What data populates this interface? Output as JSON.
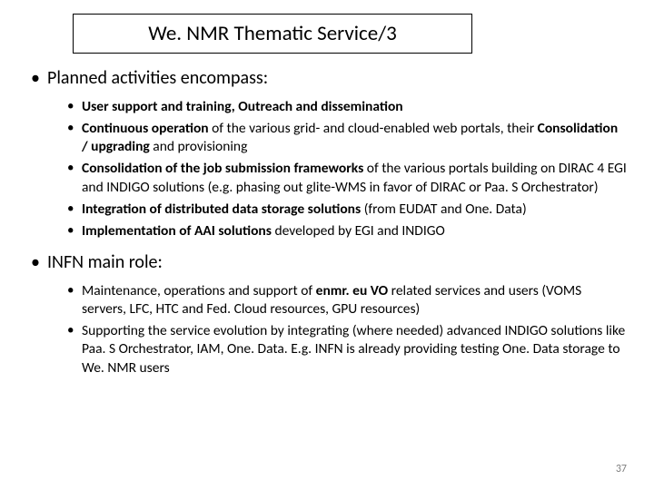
{
  "title": "We. NMR Thematic Service/3",
  "pageNumber": "37",
  "colors": {
    "background": "#ffffff",
    "text": "#000000",
    "border": "#000000",
    "pageNum": "#7f7f7f"
  },
  "section1": {
    "heading": "Planned activities encompass:",
    "items": {
      "i0": {
        "t0": "User support and training, Outreach and dissemination"
      },
      "i1": {
        "t0": "Continuous operation",
        "t1": " of the various grid- and cloud-enabled web portals, their ",
        "t2": "Consolidation / upgrading ",
        "t3": " and provisioning"
      },
      "i2": {
        "t0": "Consolidation of the job submission frameworks",
        "t1": " of the various portals building on DIRAC 4 EGI and INDIGO  solutions (e.g. phasing out glite-WMS in favor of DIRAC or Paa. S Orchestrator)"
      },
      "i3": {
        "t0": "Integration of distributed data storage solutions",
        "t1": " (from EUDAT and One. Data)"
      },
      "i4": {
        "t0": "Implementation of AAI solutions",
        "t1": " developed by EGI and INDIGO"
      }
    }
  },
  "section2": {
    "heading": "INFN main role:",
    "items": {
      "i0": {
        "t0": "Maintenance, operations and support of ",
        "t1": "enmr. eu VO",
        "t2": " related services and users (VOMS servers, LFC, HTC and Fed. Cloud resources, GPU resources)"
      },
      "i1": {
        "t0": "Supporting the service evolution  by integrating (where needed) advanced INDIGO solutions like Paa. S Orchestrator, IAM, One. Data. E.g. INFN is already providing testing One. Data storage to We. NMR users"
      }
    }
  }
}
